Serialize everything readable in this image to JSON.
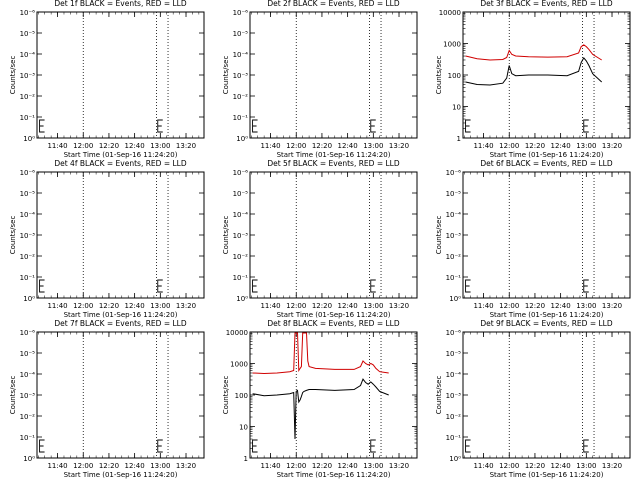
{
  "chart_data": [
    {
      "type": "line",
      "title": "Det 1f BLACK = Events, RED = LLD",
      "xlabel": "Start Time (01-Sep-16 11:24:20)",
      "ylabel": "Counts/sec",
      "yscale": "log",
      "ytick_labels": [
        "10⁰",
        "10⁻¹",
        "10⁻²",
        "10⁻³",
        "10⁻⁴",
        "10⁻⁵",
        "10⁻⁶"
      ],
      "xtick_labels": [
        "11:40",
        "12:00",
        "12:20",
        "12:40",
        "13:00",
        "13:20"
      ],
      "xlim": [
        "11:24",
        "13:34"
      ],
      "vlines": [
        "12:00",
        "12:57",
        "13:06"
      ],
      "e_marks": [
        "11:26",
        "12:58"
      ],
      "series": []
    },
    {
      "type": "line",
      "title": "Det 2f BLACK = Events, RED = LLD",
      "xlabel": "Start Time (01-Sep-16 11:24:20)",
      "ylabel": "Counts/sec",
      "yscale": "log",
      "ytick_labels": [
        "10⁰",
        "10⁻¹",
        "10⁻²",
        "10⁻³",
        "10⁻⁴",
        "10⁻⁵",
        "10⁻⁶"
      ],
      "xtick_labels": [
        "11:40",
        "12:00",
        "12:20",
        "12:40",
        "13:00",
        "13:20"
      ],
      "xlim": [
        "11:24",
        "13:34"
      ],
      "vlines": [
        "12:00",
        "12:57",
        "13:06"
      ],
      "e_marks": [
        "11:26",
        "12:58"
      ],
      "series": []
    },
    {
      "type": "line",
      "title": "Det 3f BLACK = Events, RED = LLD",
      "xlabel": "Start Time (01-Sep-16 11:24:20)",
      "ylabel": "Counts/sec",
      "yscale": "log",
      "ytick_labels": [
        "1",
        "10",
        "100",
        "1000",
        "10000"
      ],
      "ylim": [
        1,
        10000
      ],
      "xtick_labels": [
        "11:40",
        "12:00",
        "12:20",
        "12:40",
        "13:00",
        "13:20"
      ],
      "xlim": [
        "11:24",
        "13:34"
      ],
      "vlines": [
        "12:00",
        "12:57",
        "13:06"
      ],
      "e_marks": [
        "11:26",
        "12:58"
      ],
      "series": [
        {
          "color": "#d00000",
          "x": [
            "11:26",
            "11:35",
            "11:45",
            "11:55",
            "11:58",
            "12:00",
            "12:02",
            "12:05",
            "12:15",
            "12:30",
            "12:45",
            "12:54",
            "12:56",
            "12:58",
            "13:00",
            "13:02",
            "13:05",
            "13:12"
          ],
          "y": [
            400,
            330,
            300,
            310,
            360,
            600,
            450,
            400,
            380,
            370,
            380,
            500,
            800,
            900,
            800,
            650,
            450,
            300
          ]
        },
        {
          "color": "#000000",
          "x": [
            "11:26",
            "11:35",
            "11:45",
            "11:55",
            "11:58",
            "12:00",
            "12:02",
            "12:05",
            "12:15",
            "12:30",
            "12:45",
            "12:54",
            "12:56",
            "12:58",
            "13:00",
            "13:02",
            "13:05",
            "13:12"
          ],
          "y": [
            60,
            50,
            48,
            55,
            80,
            200,
            110,
            95,
            100,
            100,
            95,
            130,
            250,
            350,
            280,
            200,
            110,
            60
          ]
        }
      ]
    },
    {
      "type": "line",
      "title": "Det 4f BLACK = Events, RED = LLD",
      "xlabel": "Start Time (01-Sep-16 11:24:20)",
      "ylabel": "Counts/sec",
      "yscale": "log",
      "ytick_labels": [
        "10⁰",
        "10⁻¹",
        "10⁻²",
        "10⁻³",
        "10⁻⁴",
        "10⁻⁵",
        "10⁻⁶"
      ],
      "xtick_labels": [
        "11:40",
        "12:00",
        "12:20",
        "12:40",
        "13:00",
        "13:20"
      ],
      "xlim": [
        "11:24",
        "13:34"
      ],
      "vlines": [
        "12:00",
        "12:57",
        "13:06"
      ],
      "e_marks": [
        "11:26",
        "12:58"
      ],
      "series": []
    },
    {
      "type": "line",
      "title": "Det 5f BLACK = Events, RED = LLD",
      "xlabel": "Start Time (01-Sep-16 11:24:20)",
      "ylabel": "Counts/sec",
      "yscale": "log",
      "ytick_labels": [
        "10⁰",
        "10⁻¹",
        "10⁻²",
        "10⁻³",
        "10⁻⁴",
        "10⁻⁵",
        "10⁻⁶"
      ],
      "xtick_labels": [
        "11:40",
        "12:00",
        "12:20",
        "12:40",
        "13:00",
        "13:20"
      ],
      "xlim": [
        "11:24",
        "13:34"
      ],
      "vlines": [
        "12:00",
        "12:57",
        "13:06"
      ],
      "e_marks": [
        "11:26",
        "12:58"
      ],
      "series": []
    },
    {
      "type": "line",
      "title": "Det 6f BLACK = Events, RED = LLD",
      "xlabel": "Start Time (01-Sep-16 11:24:20)",
      "ylabel": "Counts/sec",
      "yscale": "log",
      "ytick_labels": [
        "10⁰",
        "10⁻¹",
        "10⁻²",
        "10⁻³",
        "10⁻⁴",
        "10⁻⁵",
        "10⁻⁶"
      ],
      "xtick_labels": [
        "11:40",
        "12:00",
        "12:20",
        "12:40",
        "13:00",
        "13:20"
      ],
      "xlim": [
        "11:24",
        "13:34"
      ],
      "vlines": [
        "12:00",
        "12:57",
        "13:06"
      ],
      "e_marks": [
        "11:26",
        "12:58"
      ],
      "series": []
    },
    {
      "type": "line",
      "title": "Det 7f BLACK = Events, RED = LLD",
      "xlabel": "Start Time (01-Sep-16 11:24:20)",
      "ylabel": "Counts/sec",
      "yscale": "log",
      "ytick_labels": [
        "10⁰",
        "10⁻¹",
        "10⁻²",
        "10⁻³",
        "10⁻⁴",
        "10⁻⁵",
        "10⁻⁶"
      ],
      "xtick_labels": [
        "11:40",
        "12:00",
        "12:20",
        "12:40",
        "13:00",
        "13:20"
      ],
      "xlim": [
        "11:24",
        "13:34"
      ],
      "vlines": [
        "12:00",
        "12:57",
        "13:06"
      ],
      "e_marks": [
        "11:26",
        "12:58"
      ],
      "series": []
    },
    {
      "type": "line",
      "title": "Det 8f BLACK = Events, RED = LLD",
      "xlabel": "Start Time (01-Sep-16 11:24:20)",
      "ylabel": "Counts/sec",
      "yscale": "log",
      "ytick_labels": [
        "1",
        "10",
        "100",
        "1000",
        "10000"
      ],
      "ylim": [
        1,
        10000
      ],
      "xtick_labels": [
        "11:40",
        "12:00",
        "12:20",
        "12:40",
        "13:00",
        "13:20"
      ],
      "xlim": [
        "11:24",
        "13:34"
      ],
      "vlines": [
        "12:00",
        "12:57",
        "13:06"
      ],
      "e_marks": [
        "11:26",
        "12:58"
      ],
      "series": [
        {
          "color": "#d00000",
          "x": [
            "11:26",
            "11:35",
            "11:45",
            "11:55",
            "11:58",
            "11:59",
            "12:00",
            "12:01",
            "12:02",
            "12:03",
            "12:04",
            "12:05",
            "12:06",
            "12:07",
            "12:08",
            "12:09",
            "12:10",
            "12:15",
            "12:30",
            "12:45",
            "12:50",
            "12:52",
            "12:54",
            "12:56",
            "12:58",
            "13:00",
            "13:02",
            "13:05",
            "13:12"
          ],
          "y": [
            500,
            480,
            500,
            550,
            600,
            10000,
            10000,
            10000,
            600,
            700,
            800,
            10000,
            10000,
            10000,
            10000,
            1200,
            800,
            700,
            650,
            650,
            800,
            1200,
            1000,
            900,
            1000,
            900,
            700,
            550,
            500
          ]
        },
        {
          "color": "#000000",
          "x": [
            "11:26",
            "11:35",
            "11:45",
            "11:55",
            "11:58",
            "11:59",
            "12:00",
            "12:01",
            "12:02",
            "12:03",
            "12:04",
            "12:05",
            "12:06",
            "12:08",
            "12:10",
            "12:15",
            "12:30",
            "12:45",
            "12:50",
            "12:52",
            "12:54",
            "12:56",
            "12:58",
            "13:00",
            "13:02",
            "13:05",
            "13:12"
          ],
          "y": [
            110,
            95,
            100,
            110,
            120,
            4,
            130,
            140,
            60,
            70,
            90,
            120,
            130,
            140,
            150,
            150,
            140,
            150,
            200,
            320,
            250,
            220,
            260,
            220,
            180,
            130,
            100
          ]
        }
      ]
    },
    {
      "type": "line",
      "title": "Det 9f BLACK = Events, RED = LLD",
      "xlabel": "Start Time (01-Sep-16 11:24:20)",
      "ylabel": "Counts/sec",
      "yscale": "log",
      "ytick_labels": [
        "10⁰",
        "10⁻¹",
        "10⁻²",
        "10⁻³",
        "10⁻⁴",
        "10⁻⁵",
        "10⁻⁶"
      ],
      "xtick_labels": [
        "11:40",
        "12:00",
        "12:20",
        "12:40",
        "13:00",
        "13:20"
      ],
      "xlim": [
        "11:24",
        "13:34"
      ],
      "vlines": [
        "12:00",
        "12:57",
        "13:06"
      ],
      "e_marks": [
        "11:26",
        "12:58"
      ],
      "series": []
    }
  ]
}
